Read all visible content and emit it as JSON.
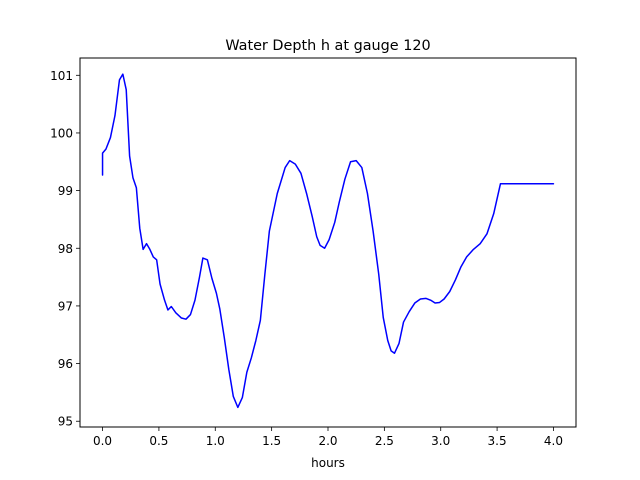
{
  "chart_data": {
    "type": "line",
    "title": "Water Depth h at gauge 120",
    "xlabel": "hours",
    "ylabel": "",
    "xlim": [
      -0.2,
      4.2
    ],
    "ylim": [
      94.9,
      101.3
    ],
    "xticks": [
      0.0,
      0.5,
      1.0,
      1.5,
      2.0,
      2.5,
      3.0,
      3.5,
      4.0
    ],
    "xtick_labels": [
      "0.0",
      "0.5",
      "1.0",
      "1.5",
      "2.0",
      "2.5",
      "3.0",
      "3.5",
      "4.0"
    ],
    "yticks": [
      95,
      96,
      97,
      98,
      99,
      100,
      101
    ],
    "ytick_labels": [
      "95",
      "96",
      "97",
      "98",
      "99",
      "100",
      "101"
    ],
    "grid": false,
    "legend": "none",
    "series": [
      {
        "color": "#0000ff",
        "x": [
          0.0,
          0.0,
          0.03,
          0.07,
          0.11,
          0.15,
          0.18,
          0.21,
          0.24,
          0.27,
          0.3,
          0.33,
          0.36,
          0.39,
          0.42,
          0.45,
          0.48,
          0.51,
          0.55,
          0.58,
          0.61,
          0.65,
          0.7,
          0.74,
          0.78,
          0.82,
          0.86,
          0.89,
          0.93,
          0.97,
          1.01,
          1.04,
          1.08,
          1.12,
          1.16,
          1.2,
          1.24,
          1.28,
          1.32,
          1.36,
          1.4,
          1.44,
          1.48,
          1.55,
          1.62,
          1.66,
          1.71,
          1.76,
          1.81,
          1.86,
          1.9,
          1.93,
          1.97,
          2.01,
          2.06,
          2.1,
          2.15,
          2.2,
          2.25,
          2.3,
          2.35,
          2.4,
          2.45,
          2.49,
          2.53,
          2.56,
          2.59,
          2.63,
          2.67,
          2.72,
          2.77,
          2.82,
          2.87,
          2.91,
          2.95,
          2.99,
          3.03,
          3.08,
          3.13,
          3.18,
          3.23,
          3.29,
          3.35,
          3.41,
          3.47,
          3.53,
          3.59,
          3.65,
          3.71,
          3.77,
          3.83,
          3.89,
          3.93,
          3.97,
          4.0
        ],
        "values": [
          99.27,
          99.65,
          99.72,
          99.92,
          100.3,
          100.92,
          101.02,
          100.75,
          99.6,
          99.22,
          99.05,
          98.35,
          97.98,
          98.08,
          97.98,
          97.85,
          97.8,
          97.38,
          97.1,
          96.93,
          96.99,
          96.88,
          96.79,
          96.77,
          96.85,
          97.1,
          97.5,
          97.83,
          97.8,
          97.48,
          97.22,
          96.95,
          96.45,
          95.9,
          95.43,
          95.24,
          95.41,
          95.85,
          96.1,
          96.4,
          96.75,
          97.55,
          98.3,
          98.95,
          99.4,
          99.52,
          99.46,
          99.3,
          98.95,
          98.55,
          98.2,
          98.05,
          98.0,
          98.15,
          98.45,
          98.8,
          99.2,
          99.5,
          99.52,
          99.4,
          98.95,
          98.3,
          97.55,
          96.8,
          96.4,
          96.22,
          96.18,
          96.35,
          96.72,
          96.9,
          97.05,
          97.12,
          97.13,
          97.1,
          97.05,
          97.06,
          97.12,
          97.25,
          97.45,
          97.68,
          97.85,
          97.98,
          98.08,
          98.25,
          98.6,
          99.12,
          99.12,
          99.12,
          99.12,
          99.12,
          99.12,
          99.12,
          99.12,
          99.12,
          99.12
        ]
      }
    ]
  }
}
